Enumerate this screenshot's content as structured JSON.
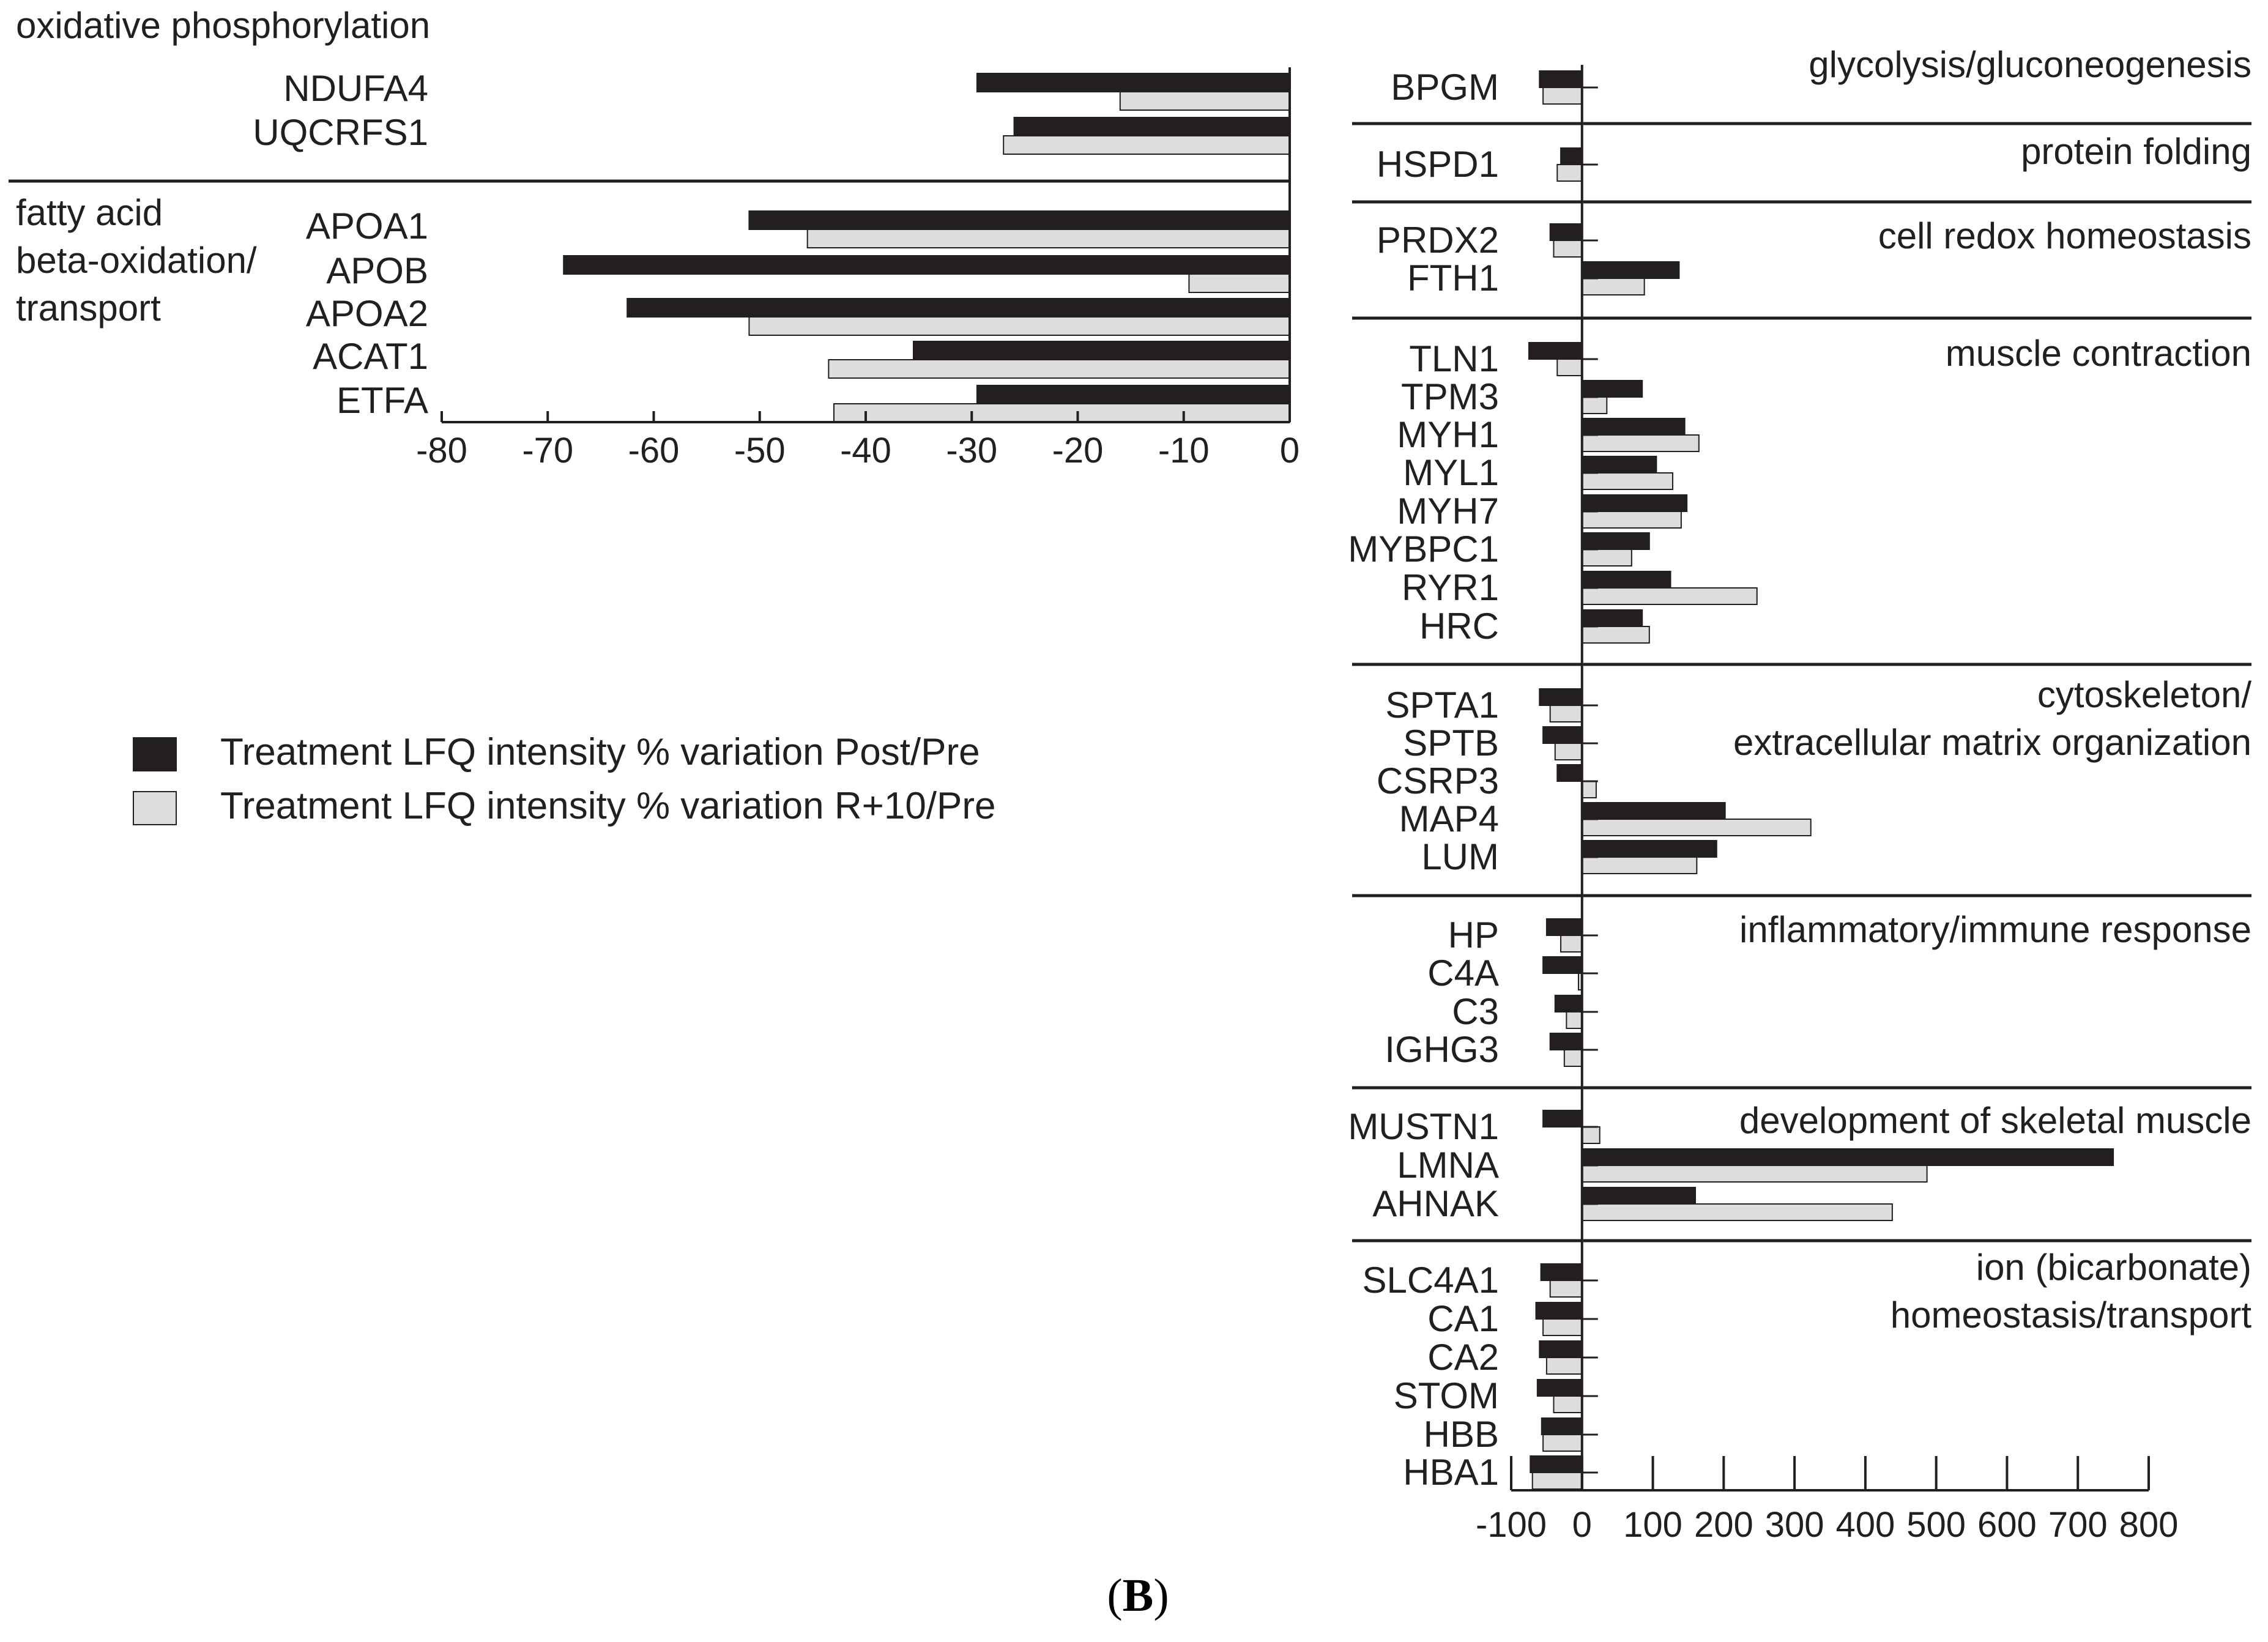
{
  "panel_label": {
    "open": "(",
    "letter": "B",
    "close": ")"
  },
  "colors": {
    "post": "#231f20",
    "r10": "#dddddd",
    "axis": "#231f20",
    "bar_outline": "#231f20"
  },
  "legend": {
    "items": [
      {
        "key": "post",
        "label": "Treatment LFQ intensity % variation Post/Pre"
      },
      {
        "key": "r10",
        "label": "Treatment LFQ intensity % variation R+10/Pre"
      }
    ]
  },
  "chart_data": [
    {
      "type": "bar",
      "orientation": "horizontal",
      "xlim": [
        -80,
        0
      ],
      "xticks": [
        -80,
        -70,
        -60,
        -50,
        -40,
        -30,
        -20,
        -10,
        0
      ],
      "series": [
        {
          "key": "post",
          "name": "Treatment LFQ intensity % variation Post/Pre"
        },
        {
          "key": "r10",
          "name": "Treatment LFQ intensity % variation R+10/Pre"
        }
      ],
      "groups": [
        {
          "title_lines": [
            "oxidative phosphorylation"
          ],
          "proteins": [
            {
              "name": "NDUFA4",
              "post": -29.5,
              "r10": -16
            },
            {
              "name": "UQCRFS1",
              "post": -26,
              "r10": -27
            }
          ]
        },
        {
          "title_lines": [
            "fatty acid",
            "beta-oxidation/",
            "transport"
          ],
          "proteins": [
            {
              "name": "APOA1",
              "post": -51,
              "r10": -45.5
            },
            {
              "name": "APOB",
              "post": -68.5,
              "r10": -9.5
            },
            {
              "name": "APOA2",
              "post": -62.5,
              "r10": -51
            },
            {
              "name": "ACAT1",
              "post": -35.5,
              "r10": -43.5
            },
            {
              "name": "ETFA",
              "post": -29.5,
              "r10": -43
            }
          ]
        }
      ]
    },
    {
      "type": "bar",
      "orientation": "horizontal",
      "xlim": [
        -100,
        800
      ],
      "xticks": [
        -100,
        0,
        100,
        200,
        300,
        400,
        500,
        600,
        700,
        800
      ],
      "series": [
        {
          "key": "post",
          "name": "Treatment LFQ intensity % variation Post/Pre"
        },
        {
          "key": "r10",
          "name": "Treatment LFQ intensity % variation R+10/Pre"
        }
      ],
      "groups": [
        {
          "title_lines": [
            "glycolysis/gluconeogenesis"
          ],
          "proteins": [
            {
              "name": "BPGM",
              "post": -60,
              "r10": -55
            }
          ]
        },
        {
          "title_lines": [
            "protein folding"
          ],
          "proteins": [
            {
              "name": "HSPD1",
              "post": -30,
              "r10": -35
            }
          ]
        },
        {
          "title_lines": [
            "cell redox homeostasis"
          ],
          "proteins": [
            {
              "name": "PRDX2",
              "post": -45,
              "r10": -40
            },
            {
              "name": "FTH1",
              "post": 137,
              "r10": 88
            }
          ]
        },
        {
          "title_lines": [
            "muscle contraction"
          ],
          "proteins": [
            {
              "name": "TLN1",
              "post": -75,
              "r10": -35
            },
            {
              "name": "TPM3",
              "post": 85,
              "r10": 35
            },
            {
              "name": "MYH1",
              "post": 145,
              "r10": 165
            },
            {
              "name": "MYL1",
              "post": 105,
              "r10": 128
            },
            {
              "name": "MYH7",
              "post": 148,
              "r10": 140
            },
            {
              "name": "MYBPC1",
              "post": 95,
              "r10": 70
            },
            {
              "name": "RYR1",
              "post": 125,
              "r10": 247
            },
            {
              "name": "HRC",
              "post": 85,
              "r10": 95
            }
          ]
        },
        {
          "title_lines": [
            "cytoskeleton/",
            "extracellular matrix organization"
          ],
          "proteins": [
            {
              "name": "SPTA1",
              "post": -60,
              "r10": -45
            },
            {
              "name": "SPTB",
              "post": -55,
              "r10": -38
            },
            {
              "name": "CSRP3",
              "post": -35,
              "r10": 20
            },
            {
              "name": "MAP4",
              "post": 202,
              "r10": 323
            },
            {
              "name": "LUM",
              "post": 190,
              "r10": 162
            }
          ]
        },
        {
          "title_lines": [
            "inflammatory/immune response"
          ],
          "proteins": [
            {
              "name": "HP",
              "post": -50,
              "r10": -30
            },
            {
              "name": "C4A",
              "post": -55,
              "r10": -5
            },
            {
              "name": "C3",
              "post": -38,
              "r10": -22
            },
            {
              "name": "IGHG3",
              "post": -45,
              "r10": -25
            }
          ]
        },
        {
          "title_lines": [
            "development of skeletal muscle"
          ],
          "proteins": [
            {
              "name": "MUSTN1",
              "post": -55,
              "r10": 25
            },
            {
              "name": "LMNA",
              "post": 750,
              "r10": 487
            },
            {
              "name": "AHNAK",
              "post": 160,
              "r10": 438
            }
          ]
        },
        {
          "title_lines": [
            "ion (bicarbonate)",
            "homeostasis/transport"
          ],
          "proteins": [
            {
              "name": "SLC4A1",
              "post": -58,
              "r10": -45
            },
            {
              "name": "CA1",
              "post": -65,
              "r10": -55
            },
            {
              "name": "CA2",
              "post": -60,
              "r10": -50
            },
            {
              "name": "STOM",
              "post": -63,
              "r10": -40
            },
            {
              "name": "HBB",
              "post": -57,
              "r10": -55
            },
            {
              "name": "HBA1",
              "post": -73,
              "r10": -70
            }
          ]
        }
      ]
    }
  ]
}
